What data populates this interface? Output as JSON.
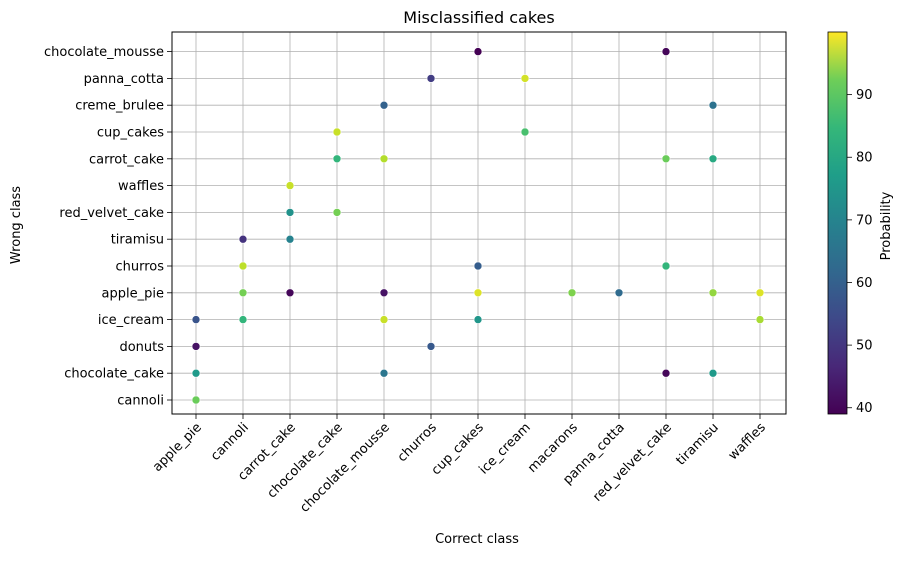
{
  "chart_data": {
    "type": "scatter",
    "title": "Misclassified cakes",
    "xlabel": "Correct class",
    "ylabel": "Wrong class",
    "x_categories": [
      "apple_pie",
      "cannoli",
      "carrot_cake",
      "chocolate_cake",
      "chocolate_mousse",
      "churros",
      "cup_cakes",
      "ice_cream",
      "macarons",
      "panna_cotta",
      "red_velvet_cake",
      "tiramisu",
      "waffles"
    ],
    "y_categories": [
      "cannoli",
      "chocolate_cake",
      "donuts",
      "ice_cream",
      "apple_pie",
      "churros",
      "tiramisu",
      "red_velvet_cake",
      "waffles",
      "carrot_cake",
      "cup_cakes",
      "creme_brulee",
      "panna_cotta",
      "chocolate_mousse"
    ],
    "grid": true,
    "colorbar": {
      "label": "Probability",
      "colormap": "viridis",
      "range": [
        39,
        100
      ],
      "ticks": [
        40,
        50,
        60,
        70,
        80,
        90
      ]
    },
    "points": [
      {
        "x": "apple_pie",
        "y": "cannoli",
        "value": 86
      },
      {
        "x": "apple_pie",
        "y": "chocolate_cake",
        "value": 72
      },
      {
        "x": "apple_pie",
        "y": "donuts",
        "value": 42
      },
      {
        "x": "apple_pie",
        "y": "ice_cream",
        "value": 55
      },
      {
        "x": "cannoli",
        "y": "ice_cream",
        "value": 79
      },
      {
        "x": "cannoli",
        "y": "apple_pie",
        "value": 87
      },
      {
        "x": "cannoli",
        "y": "churros",
        "value": 94
      },
      {
        "x": "cannoli",
        "y": "tiramisu",
        "value": 48
      },
      {
        "x": "carrot_cake",
        "y": "apple_pie",
        "value": 40
      },
      {
        "x": "carrot_cake",
        "y": "tiramisu",
        "value": 66
      },
      {
        "x": "carrot_cake",
        "y": "red_velvet_cake",
        "value": 70
      },
      {
        "x": "carrot_cake",
        "y": "waffles",
        "value": 95
      },
      {
        "x": "chocolate_cake",
        "y": "red_velvet_cake",
        "value": 87
      },
      {
        "x": "chocolate_cake",
        "y": "carrot_cake",
        "value": 79
      },
      {
        "x": "chocolate_cake",
        "y": "cup_cakes",
        "value": 95
      },
      {
        "x": "chocolate_mousse",
        "y": "chocolate_cake",
        "value": 63
      },
      {
        "x": "chocolate_mousse",
        "y": "ice_cream",
        "value": 95
      },
      {
        "x": "chocolate_mousse",
        "y": "apple_pie",
        "value": 42
      },
      {
        "x": "chocolate_mousse",
        "y": "carrot_cake",
        "value": 93
      },
      {
        "x": "chocolate_mousse",
        "y": "creme_brulee",
        "value": 58
      },
      {
        "x": "churros",
        "y": "donuts",
        "value": 56
      },
      {
        "x": "churros",
        "y": "panna_cotta",
        "value": 50
      },
      {
        "x": "cup_cakes",
        "y": "ice_cream",
        "value": 71
      },
      {
        "x": "cup_cakes",
        "y": "apple_pie",
        "value": 97
      },
      {
        "x": "cup_cakes",
        "y": "churros",
        "value": 57
      },
      {
        "x": "cup_cakes",
        "y": "chocolate_mousse",
        "value": 39
      },
      {
        "x": "ice_cream",
        "y": "cup_cakes",
        "value": 82
      },
      {
        "x": "ice_cream",
        "y": "panna_cotta",
        "value": 96
      },
      {
        "x": "macarons",
        "y": "apple_pie",
        "value": 88
      },
      {
        "x": "panna_cotta",
        "y": "apple_pie",
        "value": 60
      },
      {
        "x": "red_velvet_cake",
        "y": "chocolate_cake",
        "value": 40
      },
      {
        "x": "red_velvet_cake",
        "y": "churros",
        "value": 79
      },
      {
        "x": "red_velvet_cake",
        "y": "carrot_cake",
        "value": 86
      },
      {
        "x": "red_velvet_cake",
        "y": "chocolate_mousse",
        "value": 40
      },
      {
        "x": "tiramisu",
        "y": "chocolate_cake",
        "value": 72
      },
      {
        "x": "tiramisu",
        "y": "apple_pie",
        "value": 90
      },
      {
        "x": "tiramisu",
        "y": "carrot_cake",
        "value": 76
      },
      {
        "x": "tiramisu",
        "y": "creme_brulee",
        "value": 62
      },
      {
        "x": "waffles",
        "y": "ice_cream",
        "value": 92
      },
      {
        "x": "waffles",
        "y": "apple_pie",
        "value": 97
      }
    ]
  }
}
